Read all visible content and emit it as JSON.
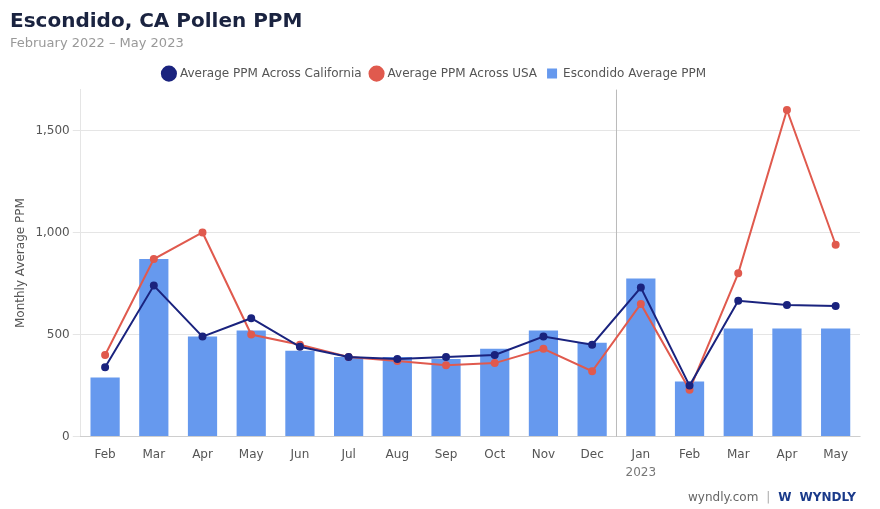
{
  "chart_data": {
    "type": "bar",
    "title": "Escondido, CA Pollen PPM",
    "subtitle": "February 2022 – May 2023",
    "y_label": "Monthly Average PPM",
    "categories": [
      "Feb",
      "Mar",
      "Apr",
      "May",
      "Jun",
      "Jul",
      "Aug",
      "Sep",
      "Oct",
      "Nov",
      "Dec",
      "Jan",
      "Feb",
      "Mar",
      "Apr",
      "May"
    ],
    "series": [
      {
        "name": "Escondido Average PPM",
        "type": "bar",
        "color": "#6699ee",
        "values": [
          290,
          870,
          490,
          520,
          420,
          390,
          390,
          380,
          430,
          520,
          460,
          775,
          270,
          530,
          530,
          530
        ]
      },
      {
        "name": "Average PPM Across California",
        "type": "line",
        "marker": "circle",
        "color": "#1a237e",
        "values": [
          340,
          740,
          490,
          580,
          440,
          390,
          380,
          390,
          400,
          490,
          450,
          730,
          250,
          665,
          645,
          640
        ]
      },
      {
        "name": "Average PPM Across USA",
        "type": "line",
        "marker": "circle",
        "color": "#e05a4e",
        "values": [
          400,
          870,
          1000,
          500,
          450,
          390,
          370,
          350,
          360,
          430,
          320,
          650,
          230,
          800,
          1600,
          940
        ]
      }
    ],
    "ylim": [
      0,
      1700
    ],
    "yticks": [
      0,
      500,
      {
        "value": 1000,
        "label": "1,000"
      },
      {
        "value": 1500,
        "label": "1,500"
      }
    ],
    "grid": true,
    "legend": "top",
    "vline": 10.5,
    "annotations": [
      {
        "text": "2023",
        "x": 11
      },
      {
        "text": "wyndly.com"
      },
      {
        "text": "|"
      },
      {
        "text": "W"
      },
      {
        "text": "WYNDLY"
      }
    ]
  }
}
